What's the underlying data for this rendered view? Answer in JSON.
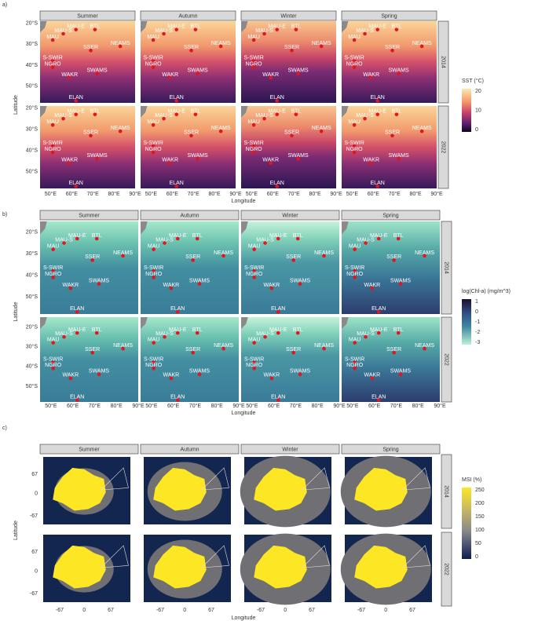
{
  "panels": [
    {
      "label": "a)",
      "seasons": [
        "Summer",
        "Autumn",
        "Winter",
        "Spring"
      ],
      "years": [
        "2014",
        "2022"
      ],
      "yticks": [
        "20°S",
        "30°S",
        "40°S",
        "50°S"
      ],
      "xticks": [
        "50°E",
        "60°E",
        "70°E",
        "80°E",
        "90°E"
      ],
      "xlabel": "Longitude",
      "ylabel": "Latitude",
      "legend": {
        "title": "SST (°C)",
        "ticks": [
          20,
          10,
          0
        ]
      },
      "stations": [
        "MAU-E",
        "BTL",
        "MAU-S",
        "MAU",
        "SSER",
        "NEAMS",
        "S-SWIR",
        "NGRO",
        "WAKR",
        "SWAMS",
        "ELAN"
      ]
    },
    {
      "label": "b)",
      "seasons": [
        "Summer",
        "Autumn",
        "Winter",
        "Spring"
      ],
      "years": [
        "2014",
        "2022"
      ],
      "yticks": [
        "20°S",
        "30°S",
        "40°S",
        "50°S"
      ],
      "xticks": [
        "50°E",
        "60°E",
        "70°E",
        "80°E",
        "90°E"
      ],
      "xlabel": "Longitude",
      "ylabel": "Latitude",
      "legend": {
        "title": "log(Chl-a) (mg/m^3)",
        "ticks": [
          1,
          0,
          -1,
          -2,
          -3
        ]
      },
      "stations": [
        "MAU-E",
        "BTL",
        "MAU-S",
        "MAU",
        "SSER",
        "NEAMS",
        "S-SWIR",
        "NGRO",
        "WAKR",
        "SWAMS",
        "ELAN"
      ]
    },
    {
      "label": "c)",
      "seasons": [
        "Summer",
        "Autumn",
        "Winter",
        "Spring"
      ],
      "years": [
        "2014",
        "2022"
      ],
      "yticks": [
        67,
        0,
        -67
      ],
      "xticks": [
        -67,
        0,
        67
      ],
      "xlabel": "Longitude",
      "ylabel": "Latitude",
      "legend": {
        "title": "MSI (%)",
        "ticks": [
          250,
          200,
          150,
          100,
          50,
          0
        ]
      }
    }
  ]
}
